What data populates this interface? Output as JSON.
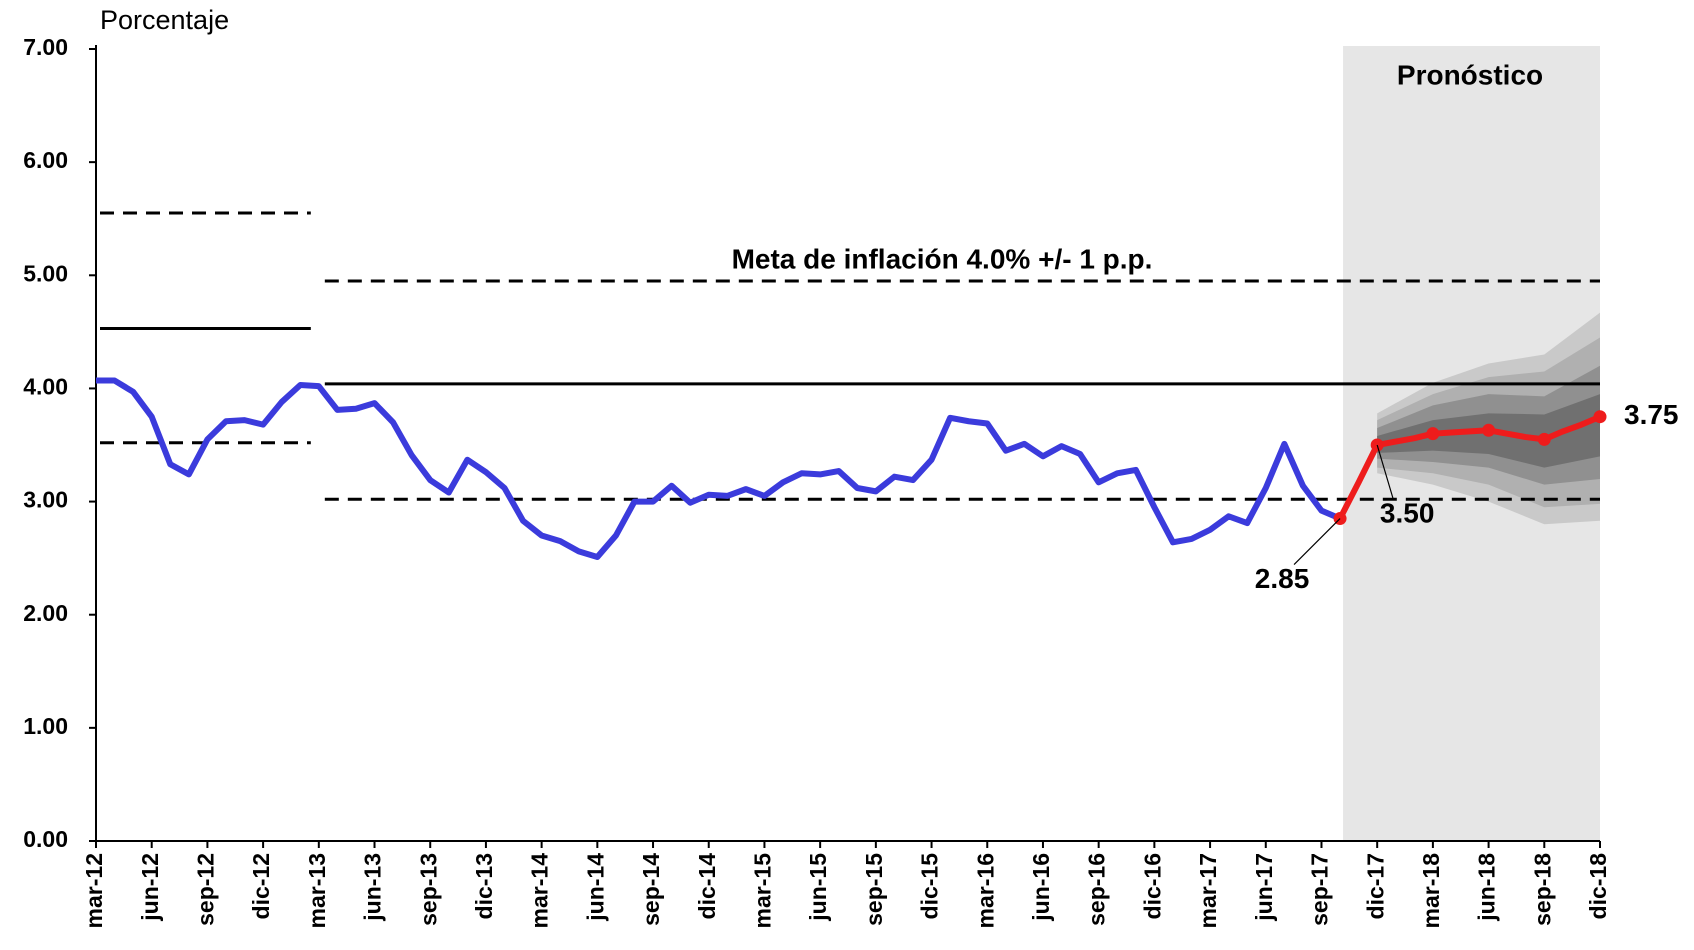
{
  "chart_data": {
    "type": "line",
    "y_axis_label": "Porcentaje",
    "annotation": "Meta de inflación 4.0% +/- 1 p.p.",
    "forecast_label": "Pronóstico",
    "categories": [
      "mar-12",
      null,
      null,
      "jun-12",
      null,
      null,
      "sep-12",
      null,
      null,
      "dic-12",
      null,
      null,
      "mar-13",
      null,
      null,
      "jun-13",
      null,
      null,
      "sep-13",
      null,
      null,
      "dic-13",
      null,
      null,
      "mar-14",
      null,
      null,
      "jun-14",
      null,
      null,
      "sep-14",
      null,
      null,
      "dic-14",
      null,
      null,
      "mar-15",
      null,
      null,
      "jun-15",
      null,
      null,
      "sep-15",
      null,
      null,
      "dic-15",
      null,
      null,
      "mar-16",
      null,
      null,
      "jun-16",
      null,
      null,
      "sep-16",
      null,
      null,
      "dic-16",
      null,
      null,
      "mar-17",
      null,
      null,
      "jun-17",
      null,
      null,
      "sep-17",
      null,
      null,
      "dic-17",
      null,
      null,
      "mar-18",
      null,
      null,
      "jun-18",
      null,
      null,
      "sep-18",
      null,
      null,
      "dic-18"
    ],
    "series": [
      {
        "color": "#3b3bdc",
        "values": [
          4.07,
          4.07,
          3.97,
          3.75,
          3.33,
          3.24,
          3.55,
          3.71,
          3.72,
          3.68,
          3.88,
          4.03,
          4.02,
          3.81,
          3.82,
          3.87,
          3.7,
          3.41,
          3.19,
          3.08,
          3.37,
          3.26,
          3.12,
          2.83,
          2.7,
          2.65,
          2.56,
          2.51,
          2.7,
          3.0,
          3.0,
          3.14,
          2.99,
          3.06,
          3.05,
          3.11,
          3.05,
          3.17,
          3.25,
          3.24,
          3.27,
          3.12,
          3.09,
          3.22,
          3.19,
          3.37,
          3.74,
          3.71,
          3.69,
          3.45,
          3.51,
          3.4,
          3.49,
          3.42,
          3.17,
          3.25,
          3.28,
          2.95,
          2.64,
          2.67,
          2.75,
          2.87,
          2.81,
          3.12,
          3.51,
          3.14,
          2.92,
          2.85,
          null,
          null,
          null,
          null,
          null,
          null,
          null,
          null,
          null,
          null,
          null,
          null,
          null,
          null
        ]
      },
      {
        "color": "#ee1c1c",
        "values": [
          null,
          null,
          null,
          null,
          null,
          null,
          null,
          null,
          null,
          null,
          null,
          null,
          null,
          null,
          null,
          null,
          null,
          null,
          null,
          null,
          null,
          null,
          null,
          null,
          null,
          null,
          null,
          null,
          null,
          null,
          null,
          null,
          null,
          null,
          null,
          null,
          null,
          null,
          null,
          null,
          null,
          null,
          null,
          null,
          null,
          null,
          null,
          null,
          null,
          null,
          null,
          null,
          null,
          null,
          null,
          null,
          null,
          null,
          null,
          null,
          null,
          null,
          null,
          null,
          null,
          null,
          null,
          2.85,
          3.17,
          3.5,
          3.53,
          3.56,
          3.6,
          3.61,
          3.62,
          3.63,
          3.6,
          3.57,
          3.55,
          3.62,
          3.68,
          3.75
        ],
        "value_labels": [
          null,
          null,
          null,
          null,
          null,
          null,
          null,
          null,
          null,
          null,
          null,
          null,
          null,
          null,
          null,
          null,
          null,
          null,
          null,
          null,
          null,
          null,
          null,
          null,
          null,
          null,
          null,
          null,
          null,
          null,
          null,
          null,
          null,
          null,
          null,
          null,
          null,
          null,
          null,
          null,
          null,
          null,
          null,
          null,
          null,
          null,
          null,
          null,
          null,
          null,
          null,
          null,
          null,
          null,
          null,
          null,
          null,
          null,
          null,
          null,
          null,
          null,
          null,
          null,
          null,
          null,
          null,
          "2.85",
          null,
          "3.50",
          null,
          null,
          null,
          null,
          null,
          null,
          null,
          null,
          null,
          null,
          null,
          "3.75"
        ]
      }
    ],
    "fan": {
      "x": [
        "dic-17",
        "mar-18",
        "jun-18",
        "sep-18",
        "dic-18"
      ],
      "bands": [
        {
          "color": "#c9c9c9",
          "lower": [
            3.25,
            3.15,
            3.0,
            2.8,
            2.83
          ],
          "upper": [
            3.78,
            4.05,
            4.22,
            4.3,
            4.67
          ]
        },
        {
          "color": "#b0b0b0",
          "lower": [
            3.3,
            3.25,
            3.15,
            2.95,
            2.98
          ],
          "upper": [
            3.72,
            3.95,
            4.1,
            4.15,
            4.45
          ]
        },
        {
          "color": "#909090",
          "lower": [
            3.38,
            3.35,
            3.3,
            3.15,
            3.2
          ],
          "upper": [
            3.65,
            3.85,
            3.95,
            3.93,
            4.2
          ]
        },
        {
          "color": "#707070",
          "lower": [
            3.43,
            3.45,
            3.42,
            3.3,
            3.4
          ],
          "upper": [
            3.58,
            3.72,
            3.78,
            3.77,
            3.95
          ]
        }
      ]
    },
    "ref_lines": [
      {
        "value": 5.55,
        "from": "mar-12",
        "to": "mar-13",
        "style": "dashed"
      },
      {
        "value": 4.53,
        "from": "mar-12",
        "to": "mar-13",
        "style": "solid"
      },
      {
        "value": 3.52,
        "from": "mar-12",
        "to": "mar-13",
        "style": "dashed"
      },
      {
        "value": 4.95,
        "from": "mar-13",
        "to": "dic-18",
        "style": "dashed"
      },
      {
        "value": 4.04,
        "from": "mar-13",
        "to": "dic-18",
        "style": "solid"
      },
      {
        "value": 3.02,
        "from": "mar-13",
        "to": "dic-18",
        "style": "dashed"
      }
    ],
    "ylim": [
      0,
      7
    ],
    "yticks": [
      {
        "value": 0,
        "label": "0.00"
      },
      {
        "value": 1,
        "label": "1.00"
      },
      {
        "value": 2,
        "label": "2.00"
      },
      {
        "value": 3,
        "label": "3.00"
      },
      {
        "value": 4,
        "label": "4.00"
      },
      {
        "value": 5,
        "label": "5.00"
      },
      {
        "value": 6,
        "label": "6.00"
      },
      {
        "value": 7,
        "label": "7.00"
      }
    ]
  }
}
